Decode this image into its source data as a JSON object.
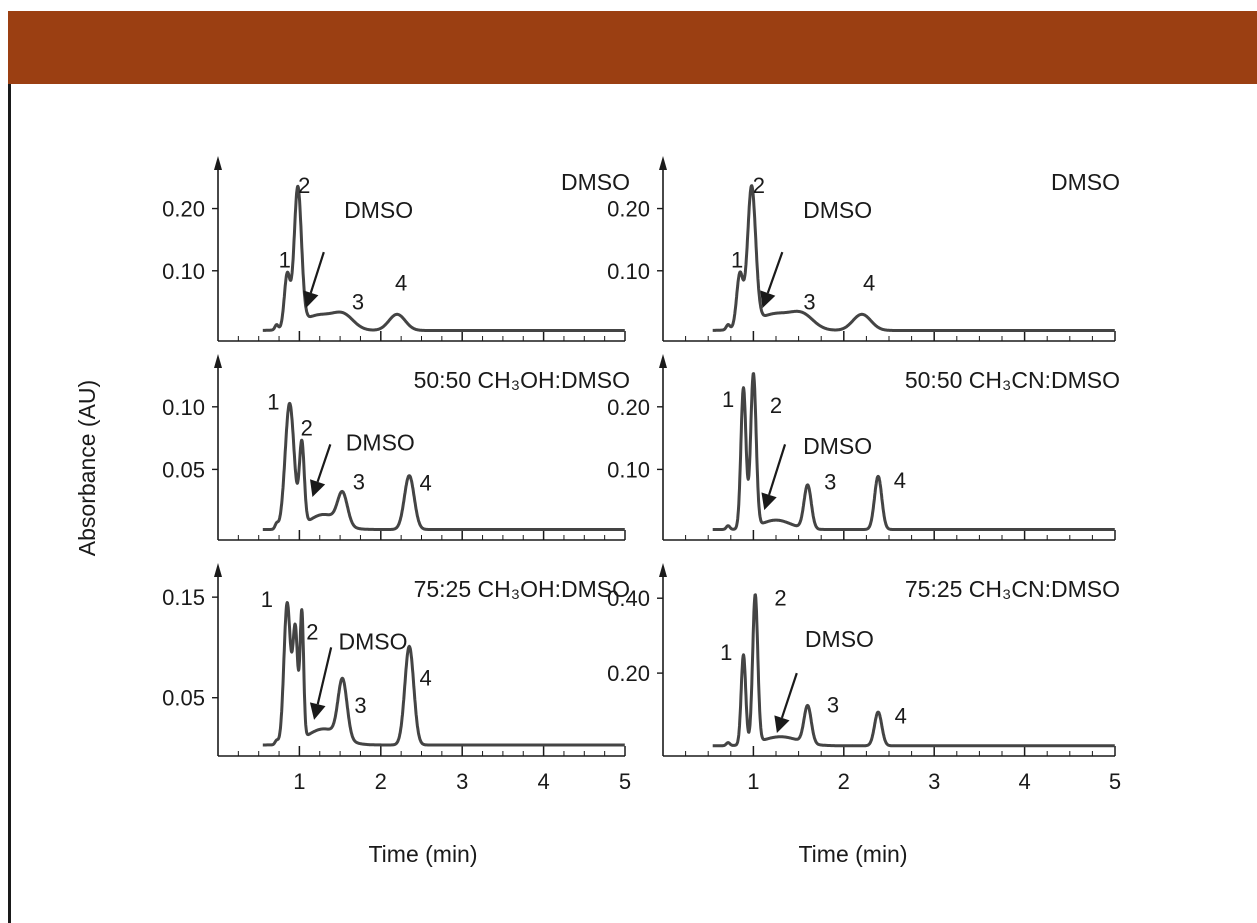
{
  "colors": {
    "header": "#9b3f12",
    "trace": "#444444",
    "ink": "#1a1a1a"
  },
  "chart_data": [
    {
      "type": "line",
      "panel": "top-left",
      "title": "DMSO",
      "ylabel": "Absorbance (AU)",
      "xlabel": "Time (min)",
      "yticks": [
        0.2,
        0.1
      ],
      "ytick_labels": [
        "0.20",
        "0.10"
      ],
      "ylim": [
        0,
        0.27
      ],
      "xlim": [
        0,
        5
      ],
      "xticks": [
        1,
        2,
        3,
        4,
        5
      ],
      "xtick_labels": [
        "1",
        "2",
        "3",
        "4",
        "5"
      ],
      "baseline": 0.004,
      "peaks": [
        {
          "center": 0.72,
          "height": 0.008,
          "width": 0.02
        },
        {
          "center": 0.85,
          "height": 0.085,
          "width": 0.035
        },
        {
          "center": 0.98,
          "height": 0.22,
          "width": 0.045
        },
        {
          "center": 1.25,
          "height": 0.025,
          "width": 0.22
        },
        {
          "center": 1.55,
          "height": 0.018,
          "width": 0.12
        },
        {
          "center": 2.2,
          "height": 0.026,
          "width": 0.1
        }
      ],
      "peak_labels": [
        {
          "text": "1",
          "x": 0.82,
          "y": 0.105
        },
        {
          "text": "2",
          "x": 1.06,
          "y": 0.225
        },
        {
          "text": "3",
          "x": 1.72,
          "y": 0.038
        },
        {
          "text": "4",
          "x": 2.25,
          "y": 0.068
        }
      ],
      "annotation": {
        "text": "DMSO",
        "tip": [
          1.08,
          0.04
        ],
        "tail": [
          1.3,
          0.13
        ],
        "label_x": 1.55,
        "label_y": 0.185
      }
    },
    {
      "type": "line",
      "panel": "top-right",
      "title": "DMSO",
      "yticks": [
        0.2,
        0.1
      ],
      "ytick_labels": [
        "0.20",
        "0.10"
      ],
      "ylim": [
        0,
        0.27
      ],
      "xlim": [
        0,
        5
      ],
      "xticks": [
        1,
        2,
        3,
        4,
        5
      ],
      "xtick_labels": [
        "1",
        "2",
        "3",
        "4",
        "5"
      ],
      "baseline": 0.004,
      "peaks": [
        {
          "center": 0.72,
          "height": 0.008,
          "width": 0.02
        },
        {
          "center": 0.85,
          "height": 0.085,
          "width": 0.035
        },
        {
          "center": 0.98,
          "height": 0.22,
          "width": 0.045
        },
        {
          "center": 1.25,
          "height": 0.027,
          "width": 0.22
        },
        {
          "center": 1.55,
          "height": 0.018,
          "width": 0.12
        },
        {
          "center": 2.2,
          "height": 0.026,
          "width": 0.1
        }
      ],
      "peak_labels": [
        {
          "text": "1",
          "x": 0.82,
          "y": 0.105
        },
        {
          "text": "2",
          "x": 1.06,
          "y": 0.225
        },
        {
          "text": "3",
          "x": 1.62,
          "y": 0.038
        },
        {
          "text": "4",
          "x": 2.28,
          "y": 0.068
        }
      ],
      "annotation": {
        "text": "DMSO",
        "tip": [
          1.1,
          0.04
        ],
        "tail": [
          1.32,
          0.13
        ],
        "label_x": 1.55,
        "label_y": 0.185
      }
    },
    {
      "type": "line",
      "panel": "middle-left",
      "title": "50:50 CH₃OH:DMSO",
      "yticks": [
        0.1,
        0.05
      ],
      "ytick_labels": [
        "0.10",
        "0.05"
      ],
      "ylim": [
        0,
        0.135
      ],
      "xlim": [
        0,
        5
      ],
      "xticks": [
        1,
        2,
        3,
        4,
        5
      ],
      "xtick_labels": [
        "1",
        "2",
        "3",
        "4",
        "5"
      ],
      "baseline": 0.002,
      "peaks": [
        {
          "center": 0.72,
          "height": 0.004,
          "width": 0.02
        },
        {
          "center": 0.88,
          "height": 0.1,
          "width": 0.055
        },
        {
          "center": 1.03,
          "height": 0.065,
          "width": 0.03
        },
        {
          "center": 1.3,
          "height": 0.012,
          "width": 0.18
        },
        {
          "center": 1.53,
          "height": 0.025,
          "width": 0.06
        },
        {
          "center": 2.35,
          "height": 0.043,
          "width": 0.06
        }
      ],
      "peak_labels": [
        {
          "text": "1",
          "x": 0.68,
          "y": 0.098
        },
        {
          "text": "2",
          "x": 1.09,
          "y": 0.077
        },
        {
          "text": "3",
          "x": 1.73,
          "y": 0.034
        },
        {
          "text": "4",
          "x": 2.55,
          "y": 0.033
        }
      ],
      "annotation": {
        "text": "DMSO",
        "tip": [
          1.16,
          0.028
        ],
        "tail": [
          1.38,
          0.07
        ],
        "label_x": 1.57,
        "label_y": 0.065
      }
    },
    {
      "type": "line",
      "panel": "middle-right",
      "title": "50:50 CH₃CN:DMSO",
      "yticks": [
        0.2,
        0.1
      ],
      "ytick_labels": [
        "0.20",
        "0.10"
      ],
      "ylim": [
        0,
        0.27
      ],
      "xlim": [
        0,
        5
      ],
      "xticks": [
        1,
        2,
        3,
        4,
        5
      ],
      "xtick_labels": [
        "1",
        "2",
        "3",
        "4",
        "5"
      ],
      "baseline": 0.004,
      "peaks": [
        {
          "center": 0.72,
          "height": 0.006,
          "width": 0.02
        },
        {
          "center": 0.89,
          "height": 0.225,
          "width": 0.028
        },
        {
          "center": 1.0,
          "height": 0.245,
          "width": 0.03
        },
        {
          "center": 1.25,
          "height": 0.015,
          "width": 0.16
        },
        {
          "center": 1.6,
          "height": 0.07,
          "width": 0.04
        },
        {
          "center": 2.38,
          "height": 0.085,
          "width": 0.04
        }
      ],
      "peak_labels": [
        {
          "text": "1",
          "x": 0.72,
          "y": 0.2
        },
        {
          "text": "2",
          "x": 1.25,
          "y": 0.19
        },
        {
          "text": "3",
          "x": 1.85,
          "y": 0.068
        },
        {
          "text": "4",
          "x": 2.62,
          "y": 0.07
        }
      ],
      "annotation": {
        "text": "DMSO",
        "tip": [
          1.12,
          0.035
        ],
        "tail": [
          1.35,
          0.14
        ],
        "label_x": 1.55,
        "label_y": 0.125
      }
    },
    {
      "type": "line",
      "panel": "bottom-left",
      "title": "75:25 CH₃OH:DMSO",
      "yticks": [
        0.15,
        0.05
      ],
      "ytick_labels": [
        "0.15",
        "0.05"
      ],
      "ylim": [
        0,
        0.175
      ],
      "xlim": [
        0,
        5
      ],
      "xticks": [
        1,
        2,
        3,
        4,
        5
      ],
      "xtick_labels": [
        "1",
        "2",
        "3",
        "4",
        "5"
      ],
      "baseline": 0.003,
      "peaks": [
        {
          "center": 0.72,
          "height": 0.004,
          "width": 0.02
        },
        {
          "center": 0.85,
          "height": 0.14,
          "width": 0.04
        },
        {
          "center": 0.95,
          "height": 0.11,
          "width": 0.03
        },
        {
          "center": 1.03,
          "height": 0.125,
          "width": 0.022
        },
        {
          "center": 1.3,
          "height": 0.016,
          "width": 0.2
        },
        {
          "center": 1.53,
          "height": 0.058,
          "width": 0.055
        },
        {
          "center": 2.35,
          "height": 0.098,
          "width": 0.055
        }
      ],
      "peak_labels": [
        {
          "text": "1",
          "x": 0.6,
          "y": 0.14
        },
        {
          "text": "2",
          "x": 1.16,
          "y": 0.108
        },
        {
          "text": "3",
          "x": 1.75,
          "y": 0.035
        },
        {
          "text": "4",
          "x": 2.55,
          "y": 0.062
        }
      ],
      "annotation": {
        "text": "DMSO",
        "tip": [
          1.18,
          0.028
        ],
        "tail": [
          1.39,
          0.1
        ],
        "label_x": 1.48,
        "label_y": 0.098
      }
    },
    {
      "type": "line",
      "panel": "bottom-right",
      "title": "75:25 CH₃CN:DMSO",
      "yticks": [
        0.4,
        0.2
      ],
      "ytick_labels": [
        "0.40",
        "0.20"
      ],
      "ylim": [
        0,
        0.47
      ],
      "xlim": [
        0,
        5
      ],
      "xticks": [
        1,
        2,
        3,
        4,
        5
      ],
      "xtick_labels": [
        "1",
        "2",
        "3",
        "4",
        "5"
      ],
      "baseline": 0.006,
      "peaks": [
        {
          "center": 0.72,
          "height": 0.008,
          "width": 0.02
        },
        {
          "center": 0.89,
          "height": 0.24,
          "width": 0.025
        },
        {
          "center": 1.02,
          "height": 0.395,
          "width": 0.028
        },
        {
          "center": 1.3,
          "height": 0.024,
          "width": 0.2
        },
        {
          "center": 1.6,
          "height": 0.1,
          "width": 0.04
        },
        {
          "center": 2.38,
          "height": 0.09,
          "width": 0.04
        }
      ],
      "peak_labels": [
        {
          "text": "1",
          "x": 0.7,
          "y": 0.235
        },
        {
          "text": "2",
          "x": 1.3,
          "y": 0.38
        },
        {
          "text": "3",
          "x": 1.88,
          "y": 0.095
        },
        {
          "text": "4",
          "x": 2.63,
          "y": 0.065
        }
      ],
      "annotation": {
        "text": "DMSO",
        "tip": [
          1.26,
          0.04
        ],
        "tail": [
          1.48,
          0.2
        ],
        "label_x": 1.57,
        "label_y": 0.27
      }
    }
  ]
}
